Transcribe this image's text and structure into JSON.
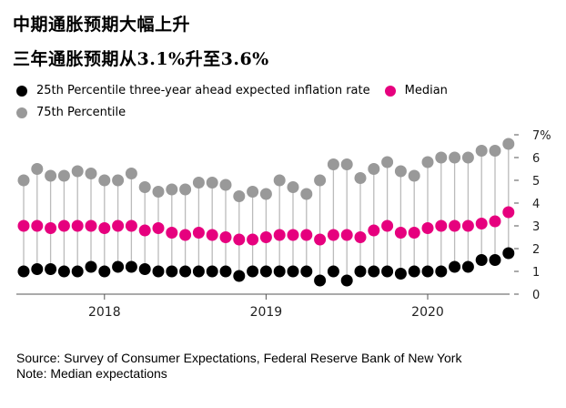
{
  "title_line1": "中期通胀预期大幅上升",
  "title_line2": "三年通胀预期从3.1%升至3.6%",
  "source": "Source: Survey of Consumer Expectations, Federal Reserve Bank of New York",
  "note": "Note: Median expectations",
  "chart_data": {
    "type": "scatter",
    "title": "中期通胀预期大幅上升",
    "subtitle": "三年通胀预期从3.1%升至3.6%",
    "xlabel": "",
    "ylabel": "",
    "ylim": [
      0,
      7
    ],
    "yticks": [
      0,
      1,
      2,
      3,
      4,
      5,
      6,
      7
    ],
    "ytick_labels": [
      "0",
      "1",
      "2",
      "3",
      "4",
      "5",
      "6",
      "7%"
    ],
    "xticks": [
      2018,
      2019,
      2020
    ],
    "xtick_labels": [
      "2018",
      "2019",
      "2020"
    ],
    "x_start": 2017.5,
    "x_step_months": 1,
    "legend": [
      {
        "name": "25th Percentile three-year ahead expected inflation rate",
        "color": "#000000"
      },
      {
        "name": "Median",
        "color": "#e6007e"
      },
      {
        "name": "75th Percentile",
        "color": "#999999"
      }
    ],
    "series": [
      {
        "name": "75th Percentile",
        "color": "#999999",
        "values": [
          5.0,
          5.5,
          5.2,
          5.2,
          5.4,
          5.3,
          5.0,
          5.0,
          5.3,
          4.7,
          4.5,
          4.6,
          4.6,
          4.9,
          4.9,
          4.8,
          4.3,
          4.5,
          4.4,
          5.0,
          4.7,
          4.4,
          5.0,
          5.7,
          5.7,
          5.1,
          5.5,
          5.8,
          5.4,
          5.2,
          5.8,
          6.0,
          6.0,
          6.0,
          6.3,
          6.3,
          6.6
        ]
      },
      {
        "name": "Median",
        "color": "#e6007e",
        "values": [
          3.0,
          3.0,
          2.9,
          3.0,
          3.0,
          3.0,
          2.9,
          3.0,
          3.0,
          2.8,
          2.9,
          2.7,
          2.6,
          2.7,
          2.6,
          2.5,
          2.4,
          2.4,
          2.5,
          2.6,
          2.6,
          2.6,
          2.4,
          2.6,
          2.6,
          2.5,
          2.8,
          3.0,
          2.7,
          2.7,
          2.9,
          3.0,
          3.0,
          3.0,
          3.1,
          3.2,
          3.6
        ]
      },
      {
        "name": "25th Percentile",
        "color": "#000000",
        "values": [
          1.0,
          1.1,
          1.1,
          1.0,
          1.0,
          1.2,
          1.0,
          1.2,
          1.2,
          1.1,
          1.0,
          1.0,
          1.0,
          1.0,
          1.0,
          1.0,
          0.8,
          1.0,
          1.0,
          1.0,
          1.0,
          1.0,
          0.6,
          1.0,
          0.6,
          1.0,
          1.0,
          1.0,
          0.9,
          1.0,
          1.0,
          1.0,
          1.2,
          1.2,
          1.5,
          1.5,
          1.8
        ]
      }
    ]
  }
}
